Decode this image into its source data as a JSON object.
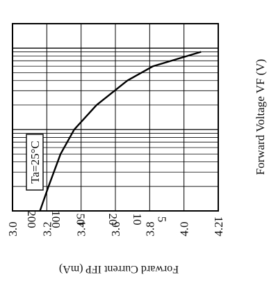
{
  "chart_data": {
    "type": "line",
    "xlabel": "Forward Current  IFP (mA)",
    "ylabel": "Forward Voltage  VF (V)",
    "annotation": "Ta=25°C",
    "x_scale": "log",
    "x_reversed": true,
    "x_ticks": [
      200,
      100,
      50,
      20,
      10,
      5,
      1
    ],
    "xlim": [
      1,
      200
    ],
    "y_ticks": [
      "3.0",
      "3.2",
      "3.4",
      "3.6",
      "3.8",
      "4.0",
      "4.2"
    ],
    "ylim": [
      3.0,
      4.2
    ],
    "grid": true,
    "series": [
      {
        "x": [
          1,
          2,
          5,
          10,
          20,
          40,
          60,
          90
        ],
        "y": [
          3.16,
          3.21,
          3.28,
          3.36,
          3.49,
          3.67,
          3.82,
          4.1
        ]
      }
    ]
  }
}
